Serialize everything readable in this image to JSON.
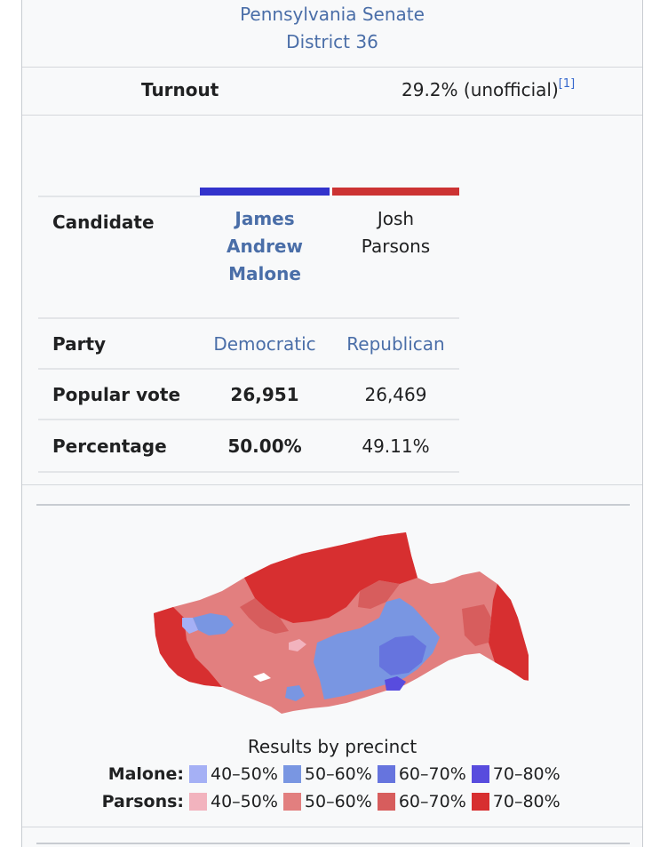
{
  "header": {
    "line1": "Pennsylvania Senate",
    "line2": "District 36"
  },
  "turnout": {
    "label": "Turnout",
    "value": "29.2% (unofficial)",
    "ref": "[1]"
  },
  "candidates": {
    "row_label": "Candidate",
    "dem": {
      "name_lines": [
        "James",
        "Andrew",
        "Malone"
      ],
      "color": "#3333cc"
    },
    "rep": {
      "name_lines": [
        "Josh",
        "Parsons"
      ],
      "color": "#cc3333"
    }
  },
  "party": {
    "label": "Party",
    "dem": "Democratic",
    "rep": "Republican"
  },
  "popular_vote": {
    "label": "Popular vote",
    "dem": "26,951",
    "rep": "26,469"
  },
  "percentage": {
    "label": "Percentage",
    "dem": "50.00%",
    "rep": "49.11%"
  },
  "map": {
    "caption": "Results by precinct"
  },
  "legend": {
    "malone": {
      "label": "Malone:",
      "items": [
        {
          "text": "40–50%",
          "color": "#a5b0f5"
        },
        {
          "text": "50–60%",
          "color": "#7996e2"
        },
        {
          "text": "60–70%",
          "color": "#6674de"
        },
        {
          "text": "70–80%",
          "color": "#584cde"
        }
      ]
    },
    "parsons": {
      "label": "Parsons:",
      "items": [
        {
          "text": "40–50%",
          "color": "#f2b3be"
        },
        {
          "text": "50–60%",
          "color": "#e27f7f"
        },
        {
          "text": "60–70%",
          "color": "#d75d5d"
        },
        {
          "text": "70–80%",
          "color": "#d72f30"
        }
      ]
    }
  }
}
